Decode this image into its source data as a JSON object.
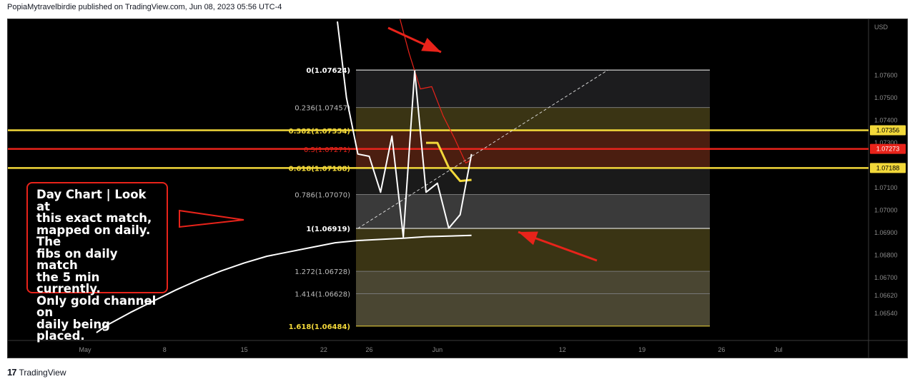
{
  "header": {
    "text": "PopiaMytravelbirdie published on TradingView.com, Jun 08, 2023 05:56 UTC-4"
  },
  "footer": {
    "logo": "17",
    "brand": "TradingView"
  },
  "annotation": {
    "text": "Day Chart | Look at\nthis exact match,\nmapped on daily. The\nfibs on daily match\nthe 5 min currently.\nOnly gold channel on\ndaily being placed."
  },
  "colors": {
    "background": "#000000",
    "gold": "#f2d83a",
    "red": "#e8231a",
    "price": "#ffffff"
  },
  "chart_data": {
    "type": "line",
    "currency": "USD",
    "x_ticks": [
      "May",
      "8",
      "15",
      "22",
      "26",
      "Jun",
      "12",
      "19",
      "26",
      "Jul"
    ],
    "y_ticks": [
      "1.07600",
      "1.07500",
      "1.07400",
      "1.07300",
      "1.07100",
      "1.07000",
      "1.06900",
      "1.06800",
      "1.06700",
      "1.06620",
      "1.06540"
    ],
    "ylim": [
      1.0642,
      1.0785
    ],
    "price_badges": [
      {
        "value": "1.07356",
        "color": "#f2d83a"
      },
      {
        "value": "1.07273",
        "color": "#e8231a"
      },
      {
        "value": "1.07188",
        "color": "#f2d83a"
      }
    ],
    "horizontal_lines": [
      {
        "y": 1.07356,
        "color": "#f2d83a"
      },
      {
        "y": 1.07273,
        "color": "#e8231a"
      },
      {
        "y": 1.07188,
        "color": "#f2d83a"
      }
    ],
    "fib_levels": [
      {
        "label": "0(1.07624)",
        "value": 1.07624
      },
      {
        "label": "0.236(1.07457)",
        "value": 1.07457
      },
      {
        "label": "0.382(1.07354)",
        "value": 1.07354
      },
      {
        "label": "0.5(1.07271)",
        "value": 1.07271
      },
      {
        "label": "0.618(1.07188)",
        "value": 1.07188
      },
      {
        "label": "0.786(1.07070)",
        "value": 1.0707
      },
      {
        "label": "1(1.06919)",
        "value": 1.06919
      },
      {
        "label": "1.272(1.06728)",
        "value": 1.06728
      },
      {
        "label": "1.414(1.06628)",
        "value": 1.06628
      },
      {
        "label": "1.618(1.06484)",
        "value": 1.06484
      }
    ],
    "price_line": {
      "x": [
        22.2,
        23,
        24,
        25,
        26,
        27,
        28,
        29,
        30,
        31,
        32,
        33,
        34,
        35,
        36
      ],
      "y": [
        1.0784,
        1.075,
        1.0725,
        1.0724,
        1.0708,
        1.0733,
        1.0688,
        1.0762,
        1.0708,
        1.0712,
        1.0692,
        1.0698,
        1.0725,
        null,
        null
      ]
    },
    "channel_line": {
      "x": [
        1,
        2,
        4,
        6,
        8,
        10,
        12,
        14,
        16,
        18,
        20,
        22,
        24,
        26,
        28,
        30,
        32,
        34
      ],
      "y": [
        1.06455,
        1.0649,
        1.06545,
        1.06595,
        1.06645,
        1.0669,
        1.0673,
        1.06765,
        1.06795,
        1.06815,
        1.06835,
        1.06855,
        1.06865,
        1.0687,
        1.06875,
        1.06882,
        1.06885,
        1.06888
      ]
    },
    "red_line": {
      "x": [
        27.5,
        28.5,
        29.5,
        30.5,
        31.5,
        32.5,
        33.5,
        34
      ],
      "y": [
        1.0789,
        1.077,
        1.0754,
        1.0755,
        1.0742,
        1.0732,
        1.0721,
        1.07225
      ]
    },
    "gold_line": {
      "x": [
        30,
        31,
        32,
        33,
        34
      ],
      "y": [
        1.073,
        1.073,
        1.0719,
        1.0713,
        1.07135
      ]
    },
    "trend_line": {
      "x": [
        24,
        46
      ],
      "y": [
        1.06919,
        1.07624
      ]
    }
  }
}
